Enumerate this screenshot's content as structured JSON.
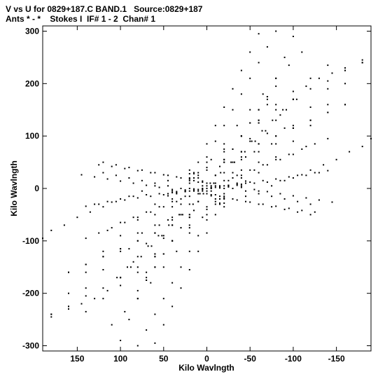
{
  "header": {
    "line1": "V vs U for 0829+187.C BAND.1   Source:0829+187",
    "line2": "Ants * - *    Stokes I  IF# 1 - 2  Chan# 1"
  },
  "chart_data": {
    "type": "scatter",
    "title": "V vs U for 0829+187.C BAND.1   Source:0829+187",
    "subtitle": "Ants * - *    Stokes I  IF# 1 - 2  Chan# 1",
    "xlabel": "Kilo Wavlngth",
    "ylabel": "Kilo Wavlngth",
    "xlim": [
      190,
      -190
    ],
    "ylim": [
      -310,
      310
    ],
    "xticks": [
      150,
      100,
      50,
      0,
      -50,
      -100,
      -150
    ],
    "xtick_labels": [
      "150",
      "100",
      "50",
      "0",
      "-50",
      "-100",
      "-150"
    ],
    "yticks": [
      300,
      200,
      100,
      0,
      -100,
      -200,
      -300
    ],
    "ytick_labels": [
      "300",
      "200",
      "100",
      "0",
      "-100",
      "-200",
      "-300"
    ],
    "grid": false,
    "marker_color": "#000000",
    "tracks": [
      {
        "x": [
          90,
          75,
          60,
          45,
          30,
          15,
          0,
          -15,
          -30,
          -45,
          -60,
          -75,
          -90,
          -105,
          -120,
          -135,
          -150,
          -165,
          -180,
          -190
        ],
        "y": [
          -115,
          -85,
          -70,
          -60,
          -50,
          -42,
          -35,
          -30,
          -20,
          -15,
          -5,
          5,
          15,
          25,
          35,
          45,
          55,
          70,
          80,
          95
        ]
      },
      {
        "x": [
          180,
          160,
          140,
          120,
          100,
          80,
          60,
          40,
          20,
          0,
          -20,
          -40,
          -60,
          -80,
          -100,
          -120,
          -140,
          -160,
          -180
        ],
        "y": [
          -240,
          -225,
          -205,
          -190,
          -170,
          -150,
          -125,
          -100,
          -75,
          -50,
          -20,
          5,
          30,
          60,
          90,
          120,
          160,
          200,
          240
        ]
      },
      {
        "x": [
          140,
          120,
          100,
          80,
          60,
          40,
          20,
          0,
          -20,
          -40,
          -60,
          -80,
          -100,
          -120,
          -140,
          -160,
          -180
        ],
        "y": [
          -235,
          -210,
          -185,
          -160,
          -130,
          -100,
          -70,
          -40,
          -10,
          20,
          50,
          85,
          120,
          155,
          190,
          225,
          245
        ]
      },
      {
        "x": [
          110,
          95,
          80,
          65,
          50,
          35,
          20,
          5,
          -10,
          -25,
          -40,
          -55,
          -70,
          -85,
          -100,
          -115,
          -130,
          -145,
          -160
        ],
        "y": [
          -260,
          -235,
          -210,
          -180,
          -150,
          -120,
          -85,
          -55,
          -25,
          5,
          35,
          70,
          105,
          140,
          170,
          195,
          210,
          220,
          230
        ]
      },
      {
        "x": [
          80,
          70,
          60,
          50,
          40,
          30,
          20,
          10,
          0,
          -10,
          -20,
          -30,
          -40,
          -50,
          -60,
          -70,
          -80,
          -90,
          -100
        ],
        "y": [
          -300,
          -270,
          -240,
          -210,
          -180,
          -150,
          -120,
          -90,
          -60,
          -30,
          0,
          30,
          60,
          95,
          130,
          170,
          210,
          250,
          290
        ]
      },
      {
        "x": [
          60,
          50,
          40,
          30,
          20,
          10,
          0,
          -10,
          -20,
          -30,
          -40,
          -50,
          -60,
          -70,
          -80
        ],
        "y": [
          -295,
          -260,
          -225,
          -190,
          -155,
          -120,
          -85,
          -50,
          -15,
          20,
          55,
          90,
          125,
          160,
          195
        ]
      },
      {
        "x": [
          130,
          115,
          100,
          85,
          70,
          55,
          40,
          25,
          10,
          -5,
          -20,
          -35,
          -50,
          -65,
          -80,
          -95,
          -110,
          -125,
          -140
        ],
        "y": [
          -30,
          -25,
          -20,
          -15,
          -12,
          -10,
          -8,
          -5,
          -2,
          2,
          5,
          8,
          12,
          15,
          18,
          22,
          26,
          30,
          34
        ]
      },
      {
        "x": [
          125,
          110,
          95,
          80,
          65,
          50,
          35,
          20,
          5,
          -10,
          -25,
          -40,
          -55,
          -70,
          -85,
          -100,
          -115,
          -130,
          -145
        ],
        "y": [
          45,
          42,
          38,
          34,
          30,
          26,
          22,
          18,
          14,
          10,
          6,
          2,
          -2,
          -6,
          -10,
          -14,
          -18,
          -22,
          -26
        ]
      },
      {
        "x": [
          120,
          105,
          90,
          75,
          60,
          45,
          30,
          15,
          0,
          -15,
          -30,
          -45,
          -60,
          -75,
          -90,
          -105,
          -120
        ],
        "y": [
          30,
          25,
          20,
          15,
          10,
          5,
          0,
          -5,
          -10,
          -15,
          -20,
          -25,
          -30,
          -35,
          -40,
          -45,
          -50
        ]
      },
      {
        "x": [
          115,
          100,
          85,
          70,
          55,
          40,
          25,
          10,
          -5,
          -20,
          -35,
          -50,
          -65,
          -80,
          -95,
          -110,
          -125,
          -140
        ],
        "y": [
          -80,
          -65,
          -55,
          -45,
          -35,
          -25,
          -15,
          -5,
          5,
          15,
          25,
          35,
          45,
          55,
          65,
          75,
          85,
          95
        ]
      },
      {
        "x": [
          70,
          60,
          50,
          40,
          30,
          20,
          10,
          0,
          -10,
          -20,
          -30,
          -40,
          -50,
          -60,
          -70
        ],
        "y": [
          -175,
          -150,
          -125,
          -100,
          -75,
          -50,
          -25,
          0,
          25,
          50,
          75,
          100,
          125,
          150,
          175
        ]
      },
      {
        "x": [
          100,
          88,
          76,
          64,
          52,
          40,
          28,
          16,
          4,
          -8,
          -20,
          -32,
          -44,
          -56,
          -68,
          -80,
          -92,
          -104
        ],
        "y": [
          -170,
          -150,
          -130,
          -110,
          -90,
          -70,
          -50,
          -30,
          -10,
          10,
          30,
          50,
          70,
          90,
          110,
          130,
          150,
          170
        ]
      },
      {
        "x": [
          160,
          140,
          120,
          100,
          80,
          60,
          40,
          20
        ],
        "y": [
          -160,
          -145,
          -130,
          -115,
          -100,
          -85,
          -70,
          -55
        ]
      },
      {
        "x": [
          -20,
          -40,
          -60,
          -80,
          -100,
          -120,
          -140,
          -160
        ],
        "y": [
          55,
          70,
          85,
          100,
          115,
          130,
          145,
          160
        ]
      },
      {
        "x": [
          45,
          35,
          25,
          15,
          5,
          -5,
          -15,
          -25,
          -35,
          -45
        ],
        "y": [
          -10,
          -6,
          -3,
          -1,
          0,
          1,
          3,
          6,
          10,
          14
        ]
      },
      {
        "x": [
          20,
          15,
          10,
          5,
          0,
          -5,
          -10,
          -15,
          -20
        ],
        "y": [
          35,
          28,
          20,
          12,
          5,
          -5,
          -12,
          -20,
          -28
        ]
      }
    ]
  }
}
